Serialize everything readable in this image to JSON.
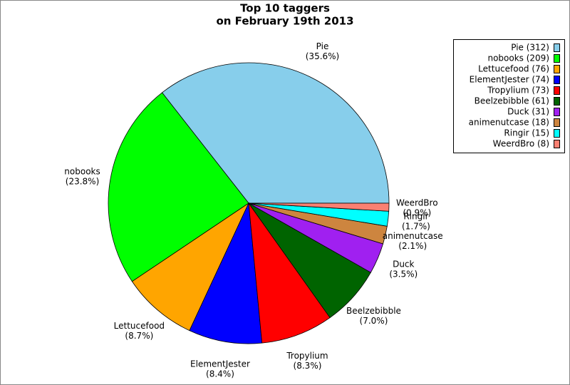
{
  "chart_data": {
    "type": "pie",
    "title": [
      "Top 10 taggers",
      "on February 19th 2013"
    ],
    "categories": [
      "Pie",
      "nobooks",
      "Lettucefood",
      "ElementJester",
      "Tropylium",
      "Beelzebibble",
      "Duck",
      "animenutcase",
      "Ringir",
      "WeerdBro"
    ],
    "values": [
      312,
      209,
      76,
      74,
      73,
      61,
      31,
      18,
      15,
      8
    ],
    "percent_labels": [
      "(35.6%)",
      "(23.8%)",
      "(8.7%)",
      "(8.4%)",
      "(8.3%)",
      "(7.0%)",
      "(3.5%)",
      "(2.1%)",
      "(1.7%)",
      "(0.9%)"
    ],
    "legend_labels": [
      "Pie (312)",
      "nobooks (209)",
      "Lettucefood (76)",
      "ElementJester (74)",
      "Tropylium (73)",
      "Beelzebibble (61)",
      "Duck (31)",
      "animenutcase (18)",
      "Ringir (15)",
      "WeerdBro (8)"
    ],
    "colors": [
      "#87ceeb",
      "#00ff00",
      "#ffa500",
      "#0000ff",
      "#ff0000",
      "#006400",
      "#a020f0",
      "#cd853f",
      "#00ffff",
      "#fa8072"
    ],
    "legend": "upper right"
  }
}
